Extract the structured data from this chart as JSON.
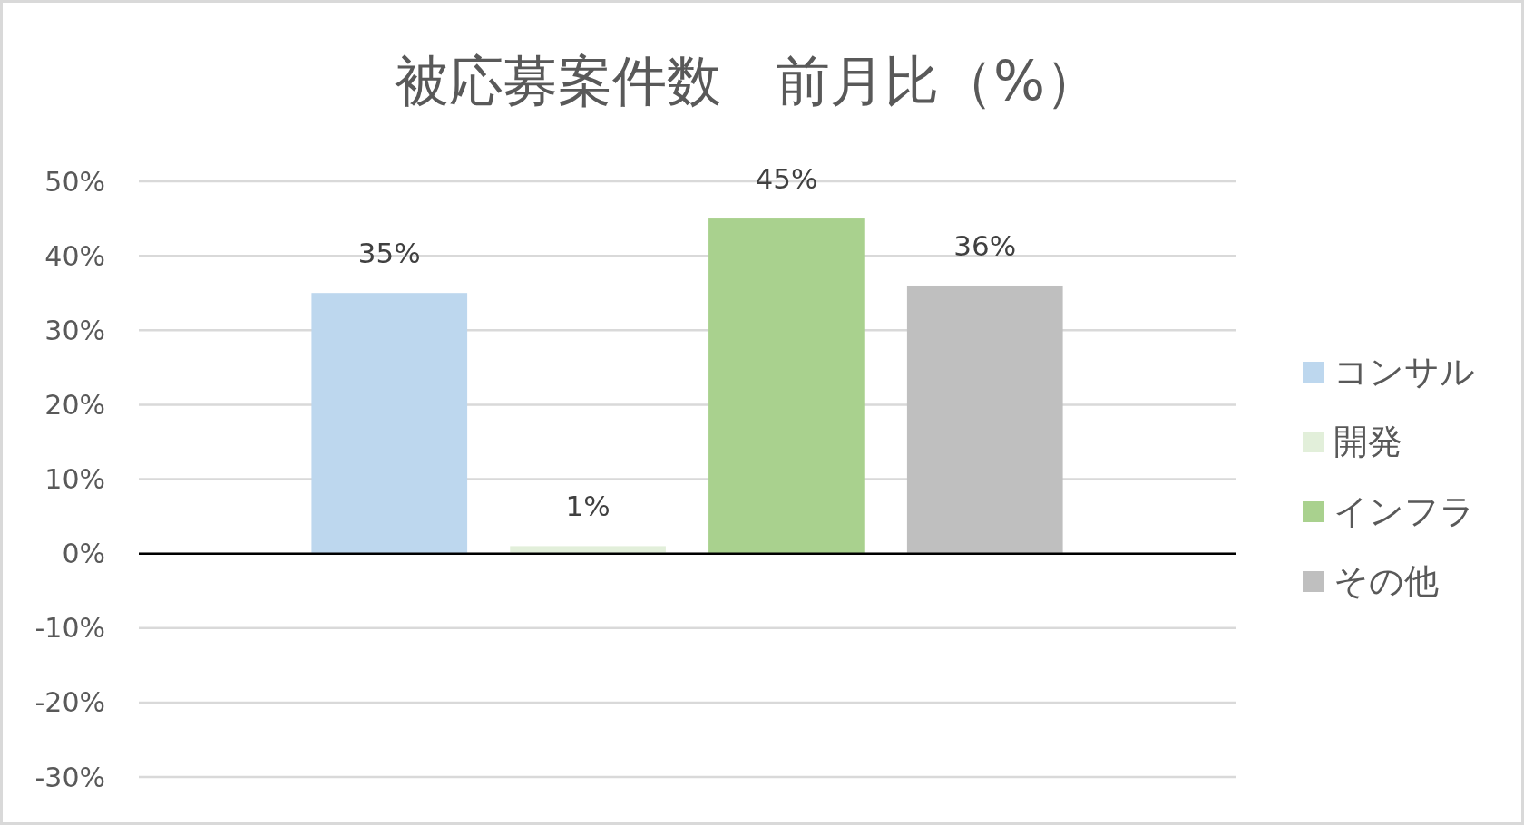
{
  "chart_data": {
    "type": "bar",
    "title": "被応募案件数　前月比（%）",
    "categories": [
      null
    ],
    "series": [
      {
        "name": "コンサル",
        "color": "#bdd7ee",
        "values": [
          35
        ],
        "value_labels": [
          "35%"
        ]
      },
      {
        "name": "開発",
        "color": "#e2efda",
        "values": [
          1
        ],
        "value_labels": [
          "1%"
        ]
      },
      {
        "name": "インフラ",
        "color": "#a9d18e",
        "values": [
          45
        ],
        "value_labels": [
          "45%"
        ]
      },
      {
        "name": "その他",
        "color": "#bfbfbf",
        "values": [
          36
        ],
        "value_labels": [
          "36%"
        ]
      }
    ],
    "ylim": [
      -30,
      50
    ],
    "yticks": [
      {
        "value": -30,
        "label": "-30%"
      },
      {
        "value": -20,
        "label": "-20%"
      },
      {
        "value": -10,
        "label": "-10%"
      },
      {
        "value": 0,
        "label": "0%"
      },
      {
        "value": 10,
        "label": "10%"
      },
      {
        "value": 20,
        "label": "20%"
      },
      {
        "value": 30,
        "label": "30%"
      },
      {
        "value": 40,
        "label": "40%"
      },
      {
        "value": 50,
        "label": "50%"
      }
    ],
    "grid": "y",
    "legend": "right"
  }
}
